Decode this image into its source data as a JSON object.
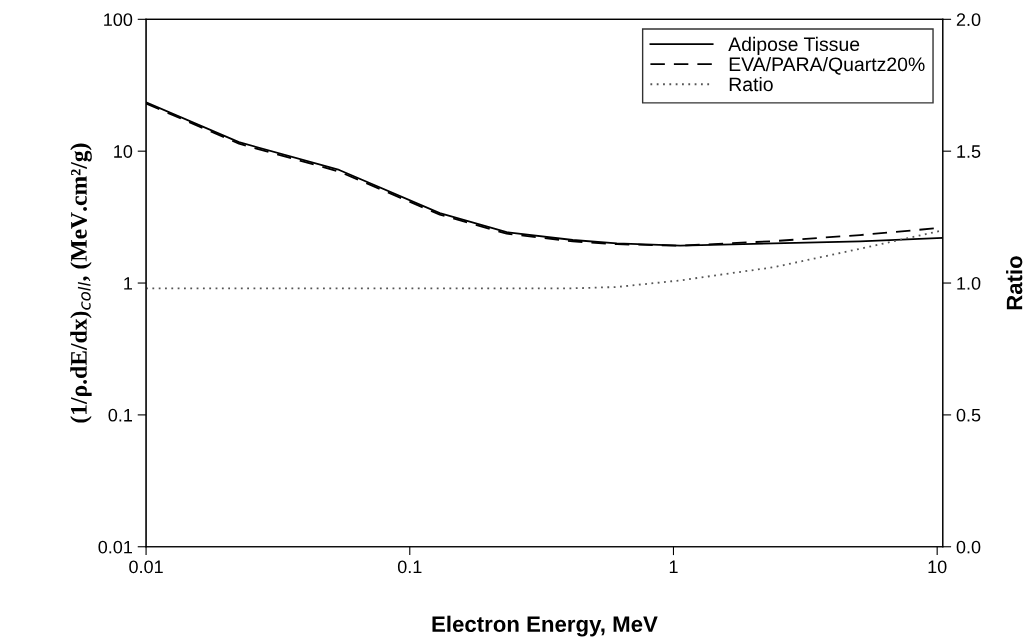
{
  "chart_data": {
    "type": "line",
    "xlabel": "Electron Energy, MeV",
    "ylabel": "(1/ρ.dE/dx)$_{coll}$, (MeV.cm²/g)",
    "y2label": "Ratio",
    "log": "xy",
    "xlim": [
      0.01,
      10.5
    ],
    "xticks": [
      0.01,
      0.1,
      1,
      10
    ],
    "ylim": [
      0.01,
      100
    ],
    "yticks": [
      0.01,
      0.1,
      1,
      10,
      100
    ],
    "y2lim": [
      0,
      2
    ],
    "y2ticks": [
      {
        "value": 0,
        "label": "0.0"
      },
      0.5,
      {
        "value": 1,
        "label": "1.0"
      },
      1.5,
      {
        "value": 2,
        "label": "2.0"
      }
    ],
    "x": [
      0.01,
      0.0225,
      0.054,
      0.13,
      0.233,
      0.415,
      0.61,
      1.06,
      2.4,
      5.1,
      10.5
    ],
    "series": [
      {
        "name": "Adipose Tissue",
        "color": "#000000",
        "line_style": "solid",
        "values": [
          23.5,
          11.7,
          7.2,
          3.39,
          2.43,
          2.12,
          2.0,
          1.92,
          2.0,
          2.07,
          2.2
        ]
      },
      {
        "name": "EVA/PARA/Quartz20%",
        "color": "#000000",
        "line_style": "dashed",
        "values": [
          23.0,
          11.4,
          7.0,
          3.3,
          2.37,
          2.07,
          1.97,
          1.92,
          2.08,
          2.31,
          2.63
        ]
      },
      {
        "name": "Ratio",
        "color": "#555555",
        "line_style": "dotted",
        "axis": "y2",
        "values": [
          0.98,
          0.98,
          0.98,
          0.98,
          0.98,
          0.98,
          0.985,
          1.01,
          1.06,
          1.13,
          1.2
        ]
      }
    ],
    "legend": "top right",
    "grid": false,
    "marker": "none"
  }
}
